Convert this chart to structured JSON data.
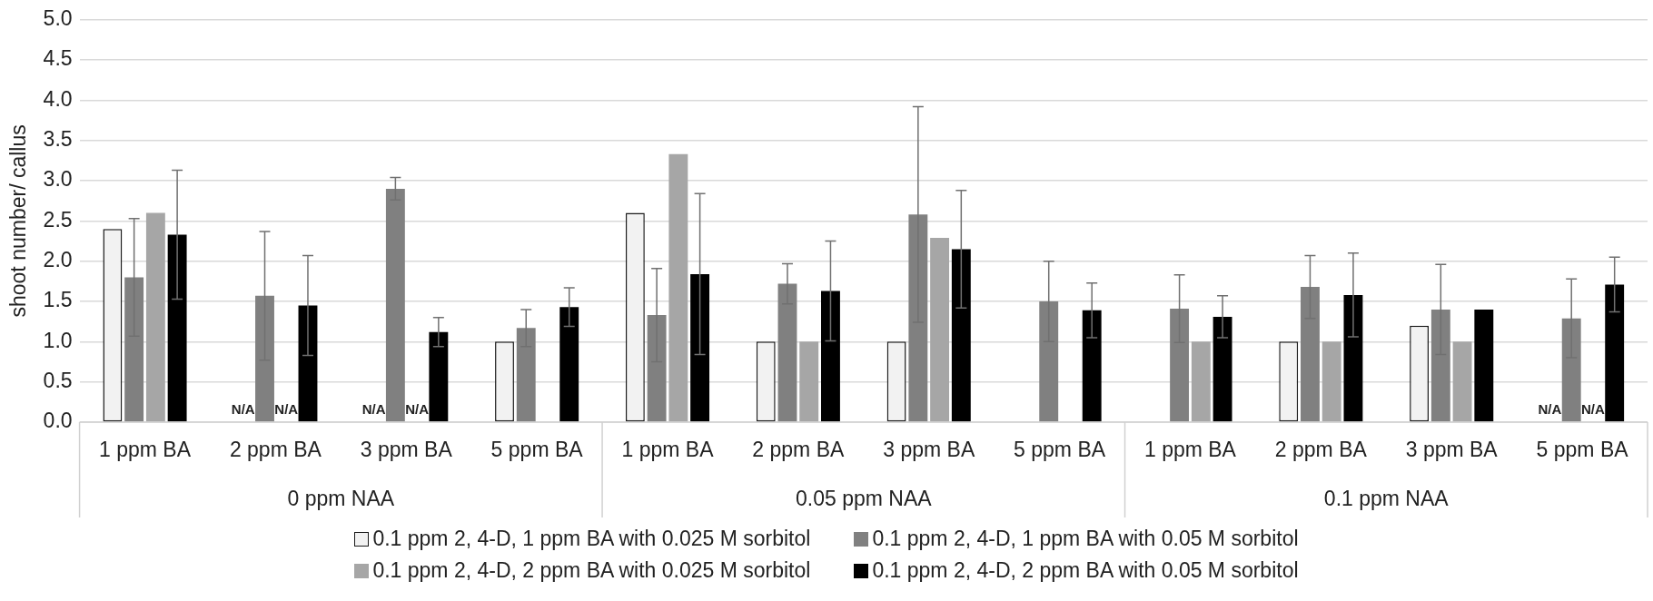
{
  "chart_data": {
    "type": "bar",
    "categories": [
      "1 ppm BA",
      "2 ppm BA",
      "3 ppm BA",
      "5 ppm BA",
      "1 ppm BA",
      "2 ppm BA",
      "3 ppm BA",
      "5 ppm BA",
      "1 ppm BA",
      "2 ppm BA",
      "3 ppm BA",
      "5 ppm BA"
    ],
    "ylabel": "shoot number/ callus",
    "annotations": [
      "0 ppm NAA",
      "0.05 ppm NAA",
      "0.1 ppm NAA"
    ],
    "series": [
      {
        "name": "0.1 ppm 2, 4-D, 1 ppm BA with 0.025 M sorbitol",
        "color": "#f2f2f2",
        "values": [
          2.4,
          null,
          null,
          1.0,
          2.6,
          1.0,
          1.0,
          null,
          null,
          1.0,
          1.2,
          null
        ],
        "value_labels": [
          null,
          "N/A",
          "N/A",
          null,
          null,
          null,
          null,
          null,
          null,
          null,
          null,
          "N/A"
        ]
      },
      {
        "name": "0.1 ppm 2, 4-D, 1 ppm BA with 0.05 M sorbitol",
        "color": "#808080",
        "values": [
          1.8,
          1.57,
          2.9,
          1.17,
          1.33,
          1.72,
          2.58,
          1.5,
          1.41,
          1.68,
          1.4,
          1.29
        ],
        "errors": [
          0.73,
          0.8,
          0.14,
          0.23,
          0.58,
          0.25,
          1.34,
          0.5,
          0.42,
          0.39,
          0.56,
          0.49
        ]
      },
      {
        "name": "0.1 ppm 2, 4-D, 2 ppm BA with 0.025 M sorbitol",
        "color": "#a6a6a6",
        "values": [
          2.6,
          null,
          null,
          null,
          3.33,
          1.0,
          2.29,
          null,
          1.0,
          1.0,
          1.0,
          null
        ],
        "value_labels": [
          null,
          "N/A",
          "N/A",
          null,
          null,
          null,
          null,
          null,
          null,
          null,
          null,
          "N/A"
        ]
      },
      {
        "name": "0.1 ppm 2, 4-D, 2 ppm BA with 0.05 M sorbitol",
        "color": "#000000",
        "values": [
          2.33,
          1.45,
          1.12,
          1.43,
          1.84,
          1.63,
          2.15,
          1.39,
          1.31,
          1.58,
          1.4,
          1.71
        ],
        "errors": [
          0.8,
          0.62,
          0.18,
          0.24,
          1.0,
          0.62,
          0.73,
          0.34,
          0.26,
          0.52,
          null,
          0.34
        ]
      }
    ],
    "ylim": [
      0,
      5
    ],
    "yticks": [
      {
        "value": 0,
        "label": "0.0"
      },
      {
        "value": 0.5,
        "label": "0.5"
      },
      {
        "value": 1,
        "label": "1.0"
      },
      {
        "value": 1.5,
        "label": "1.5"
      },
      {
        "value": 2,
        "label": "2.0"
      },
      {
        "value": 2.5,
        "label": "2.5"
      },
      {
        "value": 3,
        "label": "3.0"
      },
      {
        "value": 3.5,
        "label": "3.5"
      },
      {
        "value": 4,
        "label": "4.0"
      },
      {
        "value": 4.5,
        "label": "4.5"
      },
      {
        "value": 5,
        "label": "5.0"
      }
    ],
    "grid": "y",
    "legend": "bottom"
  }
}
